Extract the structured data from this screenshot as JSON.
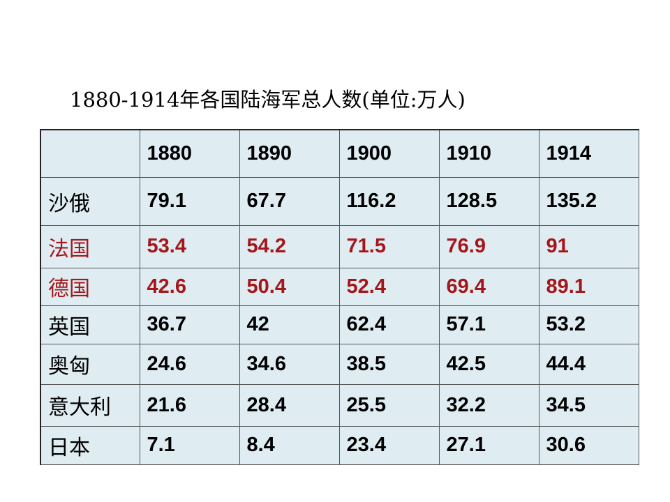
{
  "title": "1880-1914年各国陆海军总人数(单位:万人)",
  "table": {
    "columns": [
      "1880",
      "1890",
      "1900",
      "1910",
      "1914"
    ],
    "rows": [
      {
        "label": "沙俄",
        "color": "#000000",
        "cells": [
          "79.1",
          "67.7",
          "116.2",
          "128.5",
          "135.2"
        ]
      },
      {
        "label": "法国",
        "color": "#a5161b",
        "cells": [
          "53.4",
          "54.2",
          "71.5",
          "76.9",
          "91"
        ]
      },
      {
        "label": "德国",
        "color": "#a5161b",
        "cells": [
          "42.6",
          "50.4",
          "52.4",
          "69.4",
          "89.1"
        ]
      },
      {
        "label": "英国",
        "color": "#000000",
        "cells": [
          "36.7",
          "42",
          "62.4",
          "57.1",
          "53.2"
        ]
      },
      {
        "label": "奥匈",
        "color": "#000000",
        "cells": [
          "24.6",
          "34.6",
          "38.5",
          "42.5",
          "44.4"
        ]
      },
      {
        "label": "意大利",
        "color": "#000000",
        "cells": [
          "21.6",
          "28.4",
          "25.5",
          "32.2",
          "34.5"
        ]
      },
      {
        "label": "日本",
        "color": "#000000",
        "cells": [
          "7.1",
          "8.4",
          "23.4",
          "27.1",
          "30.6"
        ]
      }
    ]
  }
}
